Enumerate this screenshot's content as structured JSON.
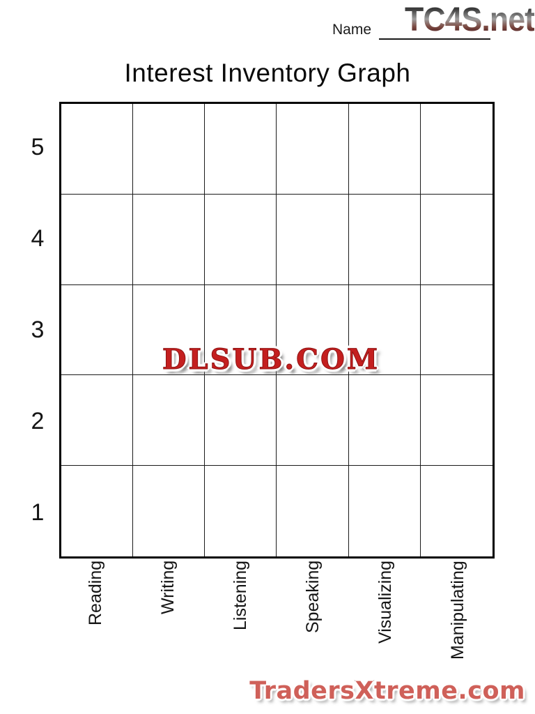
{
  "header": {
    "name_label": "Name",
    "site_logo": "TC4S.net",
    "title": "Interest Inventory Graph"
  },
  "graph": {
    "rows": 5,
    "columns": 6,
    "row_labels": [
      "5",
      "4",
      "3",
      "2",
      "1"
    ],
    "column_labels": [
      "Reading",
      "Writing",
      "Listening",
      "Speaking",
      "Visualizing",
      "Manipulating"
    ]
  },
  "watermarks": {
    "center": "DLSUB.COM",
    "bottom_right": "TradersXtreme.com"
  },
  "colors": {
    "grid_line": "#1a1a1a",
    "watermark_red": "#c41f1f",
    "traders_fill": "#cf6059",
    "traders_outline": "#6e1813",
    "logo_gradient_top": "#2e2e2e",
    "logo_gradient_mid": "#9f9f9f",
    "logo_gradient_bottom": "#46181a"
  }
}
